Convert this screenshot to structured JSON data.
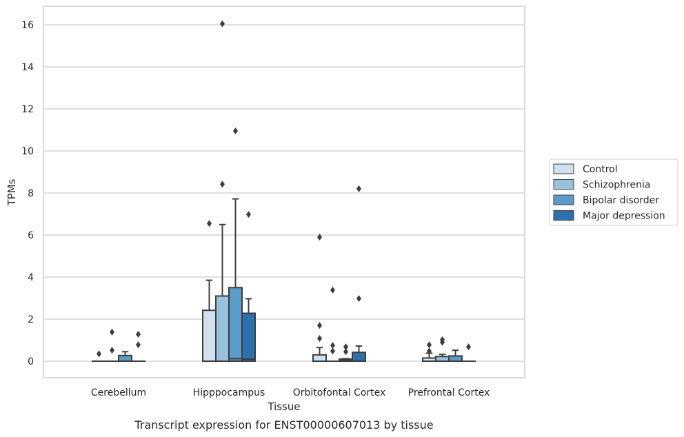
{
  "chart_data": {
    "type": "box",
    "xlabel": "Tissue",
    "ylabel": "TPMs",
    "caption": "Transcript expression for ENST00000607013 by tissue",
    "categories": [
      "Cerebellum",
      "Hipppocampus",
      "Orbitofontal Cortex",
      "Prefrontal Cortex"
    ],
    "ylim": [
      -0.8,
      16.8
    ],
    "yticks": [
      0,
      2,
      4,
      6,
      8,
      10,
      12,
      14,
      16
    ],
    "grid": true,
    "legend_position": "right",
    "series": [
      {
        "name": "Control",
        "color": "#d0e0ef",
        "boxes": [
          {
            "q1": 0,
            "median": 0,
            "q3": 0,
            "whisker_low": 0,
            "whisker_high": 0,
            "outliers": [
              0.35
            ]
          },
          {
            "q1": 0,
            "median": 0,
            "q3": 2.42,
            "whisker_low": 0,
            "whisker_high": 3.85,
            "outliers": [
              6.55
            ]
          },
          {
            "q1": 0,
            "median": 0,
            "q3": 0.3,
            "whisker_low": 0,
            "whisker_high": 0.65,
            "outliers": [
              1.08,
              1.7,
              5.9
            ]
          },
          {
            "q1": 0,
            "median": 0,
            "q3": 0.15,
            "whisker_low": 0,
            "whisker_high": 0.38,
            "outliers": [
              0.48,
              0.78
            ]
          }
        ]
      },
      {
        "name": "Schizophrenia",
        "color": "#99c3dd",
        "boxes": [
          {
            "q1": 0,
            "median": 0,
            "q3": 0,
            "whisker_low": 0,
            "whisker_high": 0,
            "outliers": [
              0.52,
              1.38
            ]
          },
          {
            "q1": 0,
            "median": 0,
            "q3": 3.1,
            "whisker_low": 0,
            "whisker_high": 6.5,
            "outliers": [
              8.42,
              16.05
            ]
          },
          {
            "q1": 0,
            "median": 0,
            "q3": 0,
            "whisker_low": 0,
            "whisker_high": 0,
            "outliers": [
              0.48,
              0.75,
              3.38
            ]
          },
          {
            "q1": 0,
            "median": 0,
            "q3": 0.22,
            "whisker_low": 0,
            "whisker_high": 0.32,
            "outliers": [
              0.9,
              1.02
            ]
          }
        ]
      },
      {
        "name": "Bipolar disorder",
        "color": "#5b9bc8",
        "boxes": [
          {
            "q1": 0,
            "median": 0,
            "q3": 0.27,
            "whisker_low": 0,
            "whisker_high": 0.45,
            "outliers": []
          },
          {
            "q1": 0,
            "median": 0.12,
            "q3": 3.5,
            "whisker_low": 0,
            "whisker_high": 7.72,
            "outliers": [
              10.95
            ]
          },
          {
            "q1": 0,
            "median": 0.05,
            "q3": 0.1,
            "whisker_low": 0,
            "whisker_high": 0.12,
            "outliers": [
              0.45,
              0.68
            ]
          },
          {
            "q1": 0,
            "median": 0,
            "q3": 0.25,
            "whisker_low": 0,
            "whisker_high": 0.52,
            "outliers": []
          }
        ]
      },
      {
        "name": "Major depression",
        "color": "#2f6fae",
        "boxes": [
          {
            "q1": 0,
            "median": 0,
            "q3": 0,
            "whisker_low": 0,
            "whisker_high": 0,
            "outliers": [
              0.78,
              1.28
            ]
          },
          {
            "q1": 0,
            "median": 0.1,
            "q3": 2.28,
            "whisker_low": 0,
            "whisker_high": 2.97,
            "outliers": [
              6.98
            ]
          },
          {
            "q1": 0,
            "median": 0,
            "q3": 0.42,
            "whisker_low": 0,
            "whisker_high": 0.72,
            "outliers": [
              2.98,
              8.2
            ]
          },
          {
            "q1": 0,
            "median": 0,
            "q3": 0,
            "whisker_low": 0,
            "whisker_high": 0,
            "outliers": [
              0.68
            ]
          }
        ]
      }
    ]
  }
}
